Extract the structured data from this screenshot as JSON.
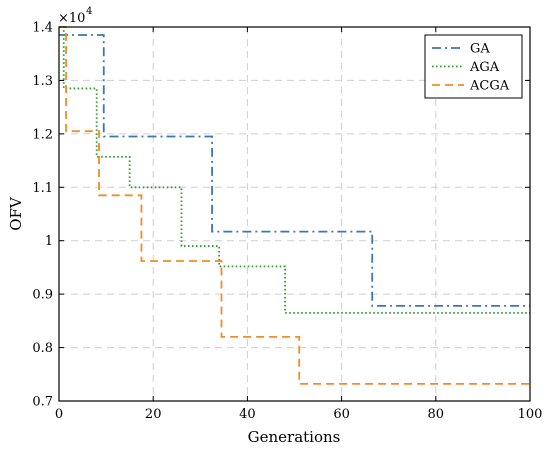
{
  "chart_data": {
    "type": "line",
    "title": "",
    "xlabel": "Generations",
    "ylabel": "OFV",
    "multiplier_label": "×10",
    "multiplier_exp": "4",
    "xlim": [
      0,
      100
    ],
    "ylim": [
      0.7,
      1.4
    ],
    "xticks": [
      0,
      20,
      40,
      60,
      80,
      100
    ],
    "xtick_labels": [
      "0",
      "20",
      "40",
      "60",
      "80",
      "100"
    ],
    "yticks": [
      0.7,
      0.8,
      0.9,
      1.0,
      1.1,
      1.2,
      1.3,
      1.4
    ],
    "ytick_labels": [
      "0.7",
      "0.8",
      "0.9",
      "1",
      "1.1",
      "1.2",
      "1.3",
      "1.4"
    ],
    "grid": true,
    "legend_position": "top-right",
    "series": [
      {
        "name": "GA",
        "color": "#3d76b2",
        "dash": "dashdot",
        "x": [
          0,
          9.5,
          9.5,
          32.5,
          32.5,
          66.5,
          66.5,
          100
        ],
        "y": [
          1.385,
          1.385,
          1.195,
          1.195,
          1.017,
          1.017,
          0.878,
          0.878
        ]
      },
      {
        "name": "AGA",
        "color": "#2ca02c",
        "dash": "dotted",
        "x": [
          0,
          1,
          1,
          8,
          8,
          15,
          15,
          26,
          26,
          34,
          34,
          48,
          48,
          100
        ],
        "y": [
          1.4,
          1.4,
          1.285,
          1.285,
          1.157,
          1.157,
          1.1,
          1.1,
          0.99,
          0.99,
          0.952,
          0.952,
          0.865,
          0.865
        ]
      },
      {
        "name": "ACGA",
        "color": "#f28c28",
        "dash": "dashed",
        "x": [
          0,
          1.5,
          1.5,
          8.5,
          8.5,
          17.5,
          17.5,
          34.5,
          34.5,
          51,
          51,
          100
        ],
        "y": [
          1.4,
          1.4,
          1.205,
          1.205,
          1.085,
          1.085,
          0.962,
          0.962,
          0.82,
          0.82,
          0.732,
          0.732
        ]
      }
    ]
  }
}
